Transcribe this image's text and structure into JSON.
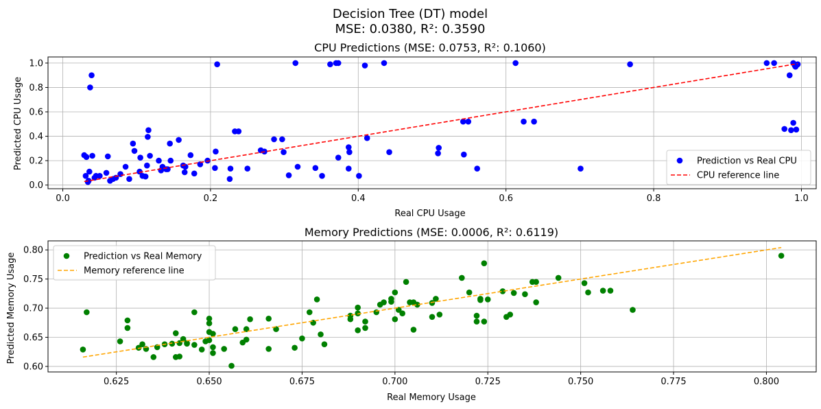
{
  "figure": {
    "suptitle_line1": "Decision Tree (DT) model",
    "suptitle_line2": "MSE: 0.0380, R²: 0.3590"
  },
  "colors": {
    "cpu_points": "#0000ff",
    "cpu_line": "#ff0000",
    "mem_points": "#008000",
    "mem_line": "#ffa500",
    "grid": "#b0b0b0"
  },
  "chart_data": [
    {
      "type": "scatter",
      "title": "CPU Predictions (MSE: 0.0753, R²: 0.1060)",
      "xlabel": "Real CPU Usage",
      "ylabel": "Predicted CPU Usage",
      "xlim": [
        -0.02,
        1.02
      ],
      "ylim": [
        -0.03,
        1.05
      ],
      "xticks": [
        0.0,
        0.2,
        0.4,
        0.6,
        0.8,
        1.0
      ],
      "xtick_labels": [
        "0.0",
        "0.2",
        "0.4",
        "0.6",
        "0.8",
        "1.0"
      ],
      "yticks": [
        0.0,
        0.2,
        0.4,
        0.6,
        0.8,
        1.0
      ],
      "ytick_labels": [
        "0.0",
        "0.2",
        "0.4",
        "0.6",
        "0.8",
        "1.0"
      ],
      "grid": true,
      "legend_position": "lower-right",
      "series": [
        {
          "name": "Prediction vs Real CPU",
          "kind": "points",
          "points": [
            [
              0.029,
              0.245
            ],
            [
              0.031,
              0.075
            ],
            [
              0.032,
              0.23
            ],
            [
              0.034,
              0.025
            ],
            [
              0.035,
              0.035
            ],
            [
              0.036,
              0.11
            ],
            [
              0.037,
              0.8
            ],
            [
              0.039,
              0.9
            ],
            [
              0.04,
              0.24
            ],
            [
              0.043,
              0.06
            ],
            [
              0.045,
              0.075
            ],
            [
              0.05,
              0.075
            ],
            [
              0.059,
              0.1
            ],
            [
              0.061,
              0.235
            ],
            [
              0.064,
              0.035
            ],
            [
              0.068,
              0.05
            ],
            [
              0.072,
              0.06
            ],
            [
              0.078,
              0.09
            ],
            [
              0.085,
              0.15
            ],
            [
              0.09,
              0.05
            ],
            [
              0.095,
              0.34
            ],
            [
              0.097,
              0.28
            ],
            [
              0.104,
              0.11
            ],
            [
              0.105,
              0.225
            ],
            [
              0.108,
              0.075
            ],
            [
              0.112,
              0.07
            ],
            [
              0.114,
              0.16
            ],
            [
              0.115,
              0.395
            ],
            [
              0.116,
              0.45
            ],
            [
              0.118,
              0.24
            ],
            [
              0.13,
              0.2
            ],
            [
              0.133,
              0.12
            ],
            [
              0.135,
              0.15
            ],
            [
              0.14,
              0.13
            ],
            [
              0.142,
              0.13
            ],
            [
              0.145,
              0.34
            ],
            [
              0.146,
              0.2
            ],
            [
              0.157,
              0.37
            ],
            [
              0.163,
              0.16
            ],
            [
              0.165,
              0.105
            ],
            [
              0.166,
              0.15
            ],
            [
              0.173,
              0.245
            ],
            [
              0.178,
              0.095
            ],
            [
              0.186,
              0.17
            ],
            [
              0.196,
              0.2
            ],
            [
              0.206,
              0.14
            ],
            [
              0.207,
              0.275
            ],
            [
              0.209,
              0.99
            ],
            [
              0.226,
              0.05
            ],
            [
              0.227,
              0.135
            ],
            [
              0.233,
              0.44
            ],
            [
              0.238,
              0.44
            ],
            [
              0.25,
              0.135
            ],
            [
              0.268,
              0.285
            ],
            [
              0.273,
              0.275
            ],
            [
              0.286,
              0.375
            ],
            [
              0.297,
              0.375
            ],
            [
              0.299,
              0.27
            ],
            [
              0.306,
              0.08
            ],
            [
              0.315,
              1.0
            ],
            [
              0.318,
              0.15
            ],
            [
              0.342,
              0.14
            ],
            [
              0.351,
              0.075
            ],
            [
              0.362,
              0.99
            ],
            [
              0.37,
              1.0
            ],
            [
              0.373,
              1.0
            ],
            [
              0.373,
              0.225
            ],
            [
              0.387,
              0.31
            ],
            [
              0.388,
              0.27
            ],
            [
              0.387,
              0.135
            ],
            [
              0.401,
              0.075
            ],
            [
              0.409,
              0.98
            ],
            [
              0.412,
              0.385
            ],
            [
              0.435,
              1.0
            ],
            [
              0.442,
              0.27
            ],
            [
              0.508,
              0.26
            ],
            [
              0.509,
              0.305
            ],
            [
              0.542,
              0.52
            ],
            [
              0.543,
              0.25
            ],
            [
              0.549,
              0.52
            ],
            [
              0.561,
              0.135
            ],
            [
              0.613,
              1.0
            ],
            [
              0.624,
              0.52
            ],
            [
              0.638,
              0.52
            ],
            [
              0.701,
              0.135
            ],
            [
              0.768,
              0.99
            ],
            [
              0.953,
              1.0
            ],
            [
              0.963,
              1.0
            ],
            [
              0.977,
              0.46
            ],
            [
              0.984,
              0.9
            ],
            [
              0.986,
              0.45
            ],
            [
              0.989,
              1.0
            ],
            [
              0.989,
              0.51
            ],
            [
              0.991,
              0.98
            ],
            [
              0.992,
              0.97
            ],
            [
              0.993,
              0.455
            ],
            [
              0.994,
              0.985
            ],
            [
              0.995,
              0.99
            ]
          ]
        },
        {
          "name": "CPU reference line",
          "kind": "dashed-line",
          "x": [
            0.029,
            0.995
          ],
          "y": [
            0.029,
            0.995
          ]
        }
      ]
    },
    {
      "type": "scatter",
      "title": "Memory Predictions (MSE: 0.0006, R²: 0.6119)",
      "xlabel": "Real Memory Usage",
      "ylabel": "Predicted Memory Usage",
      "xlim": [
        0.6066,
        0.8134
      ],
      "ylim": [
        0.5905,
        0.8155
      ],
      "xticks": [
        0.625,
        0.65,
        0.675,
        0.7,
        0.725,
        0.75,
        0.775,
        0.8
      ],
      "xtick_labels": [
        "0.625",
        "0.650",
        "0.675",
        "0.700",
        "0.725",
        "0.750",
        "0.775",
        "0.800"
      ],
      "yticks": [
        0.6,
        0.65,
        0.7,
        0.75,
        0.8
      ],
      "ytick_labels": [
        "0.60",
        "0.65",
        "0.70",
        "0.75",
        "0.80"
      ],
      "grid": true,
      "legend_position": "upper-left",
      "series": [
        {
          "name": "Prediction vs Real Memory",
          "kind": "points",
          "points": [
            [
              0.616,
              0.629
            ],
            [
              0.617,
              0.693
            ],
            [
              0.626,
              0.643
            ],
            [
              0.628,
              0.679
            ],
            [
              0.628,
              0.666
            ],
            [
              0.631,
              0.632
            ],
            [
              0.632,
              0.638
            ],
            [
              0.633,
              0.63
            ],
            [
              0.635,
              0.616
            ],
            [
              0.636,
              0.633
            ],
            [
              0.638,
              0.638
            ],
            [
              0.64,
              0.639
            ],
            [
              0.641,
              0.657
            ],
            [
              0.641,
              0.616
            ],
            [
              0.642,
              0.617
            ],
            [
              0.642,
              0.64
            ],
            [
              0.643,
              0.647
            ],
            [
              0.644,
              0.639
            ],
            [
              0.644,
              0.64
            ],
            [
              0.646,
              0.693
            ],
            [
              0.646,
              0.637
            ],
            [
              0.648,
              0.629
            ],
            [
              0.649,
              0.643
            ],
            [
              0.65,
              0.674
            ],
            [
              0.65,
              0.682
            ],
            [
              0.65,
              0.645
            ],
            [
              0.65,
              0.659
            ],
            [
              0.651,
              0.656
            ],
            [
              0.651,
              0.623
            ],
            [
              0.651,
              0.633
            ],
            [
              0.654,
              0.63
            ],
            [
              0.656,
              0.601
            ],
            [
              0.657,
              0.664
            ],
            [
              0.659,
              0.641
            ],
            [
              0.66,
              0.664
            ],
            [
              0.66,
              0.646
            ],
            [
              0.661,
              0.681
            ],
            [
              0.666,
              0.682
            ],
            [
              0.666,
              0.63
            ],
            [
              0.668,
              0.664
            ],
            [
              0.673,
              0.632
            ],
            [
              0.675,
              0.648
            ],
            [
              0.677,
              0.693
            ],
            [
              0.678,
              0.675
            ],
            [
              0.679,
              0.715
            ],
            [
              0.68,
              0.655
            ],
            [
              0.681,
              0.638
            ],
            [
              0.688,
              0.687
            ],
            [
              0.688,
              0.681
            ],
            [
              0.69,
              0.662
            ],
            [
              0.69,
              0.701
            ],
            [
              0.69,
              0.691
            ],
            [
              0.692,
              0.666
            ],
            [
              0.692,
              0.677
            ],
            [
              0.695,
              0.693
            ],
            [
              0.696,
              0.706
            ],
            [
              0.697,
              0.71
            ],
            [
              0.699,
              0.711
            ],
            [
              0.699,
              0.716
            ],
            [
              0.7,
              0.727
            ],
            [
              0.7,
              0.681
            ],
            [
              0.701,
              0.697
            ],
            [
              0.702,
              0.691
            ],
            [
              0.703,
              0.745
            ],
            [
              0.704,
              0.71
            ],
            [
              0.705,
              0.663
            ],
            [
              0.705,
              0.71
            ],
            [
              0.706,
              0.706
            ],
            [
              0.71,
              0.685
            ],
            [
              0.71,
              0.709
            ],
            [
              0.711,
              0.716
            ],
            [
              0.712,
              0.689
            ],
            [
              0.718,
              0.752
            ],
            [
              0.72,
              0.727
            ],
            [
              0.722,
              0.677
            ],
            [
              0.722,
              0.687
            ],
            [
              0.723,
              0.714
            ],
            [
              0.723,
              0.716
            ],
            [
              0.724,
              0.777
            ],
            [
              0.724,
              0.677
            ],
            [
              0.725,
              0.715
            ],
            [
              0.729,
              0.729
            ],
            [
              0.73,
              0.685
            ],
            [
              0.731,
              0.689
            ],
            [
              0.732,
              0.726
            ],
            [
              0.735,
              0.724
            ],
            [
              0.737,
              0.745
            ],
            [
              0.738,
              0.745
            ],
            [
              0.738,
              0.71
            ],
            [
              0.744,
              0.752
            ],
            [
              0.751,
              0.743
            ],
            [
              0.752,
              0.727
            ],
            [
              0.756,
              0.73
            ],
            [
              0.758,
              0.73
            ],
            [
              0.764,
              0.697
            ],
            [
              0.804,
              0.79
            ]
          ]
        },
        {
          "name": "Memory reference line",
          "kind": "dashed-line",
          "x": [
            0.616,
            0.804
          ],
          "y": [
            0.616,
            0.804
          ]
        }
      ]
    }
  ]
}
